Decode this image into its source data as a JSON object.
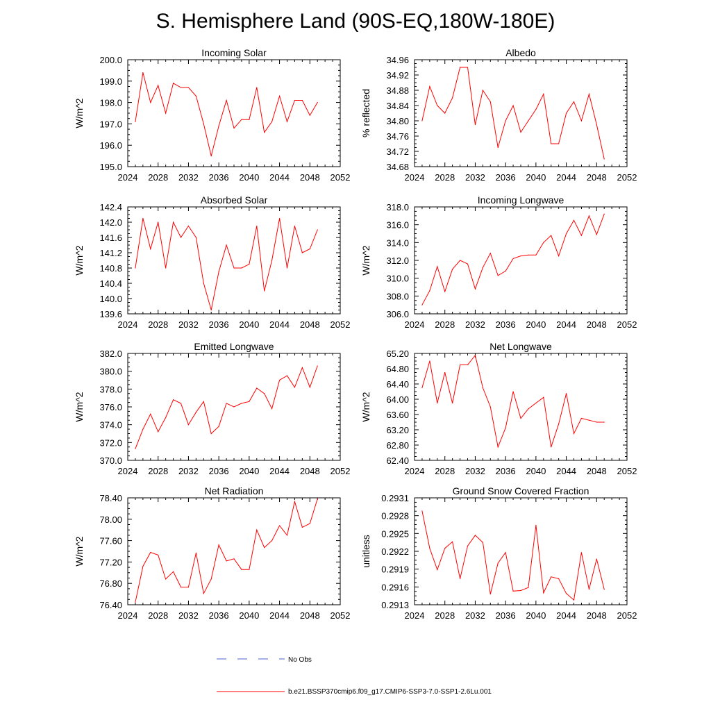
{
  "title": "S. Hemisphere Land (90S-EQ,180W-180E)",
  "colors": {
    "series": "#ff0000",
    "obs": "#4a5fd0",
    "axis": "#000000"
  },
  "legend": {
    "obs_label": "No Obs",
    "series_label": "b.e21.BSSP370cmip6.f09_g17.CMIP6-SSP3-7.0-SSP1-2.6Lu.001"
  },
  "chart_data": [
    {
      "type": "line",
      "title": "Incoming Solar",
      "xlabel": "",
      "ylabel": "W/m^2",
      "xlim": [
        2024,
        2052
      ],
      "x_ticks": [
        "2024",
        "2028",
        "2032",
        "2036",
        "2040",
        "2044",
        "2048",
        "2052"
      ],
      "ylim": [
        195.0,
        200.0
      ],
      "y_ticks": [
        "195.0",
        "196.0",
        "197.0",
        "198.0",
        "199.0",
        "200.0"
      ],
      "series": [
        {
          "x": [
            2025,
            2026,
            2027,
            2028,
            2029,
            2030,
            2031,
            2032,
            2033,
            2034,
            2035,
            2036,
            2037,
            2038,
            2039,
            2040,
            2041,
            2042,
            2043,
            2044,
            2045,
            2046,
            2047,
            2048,
            2049
          ],
          "values": [
            197.1,
            199.4,
            198.0,
            198.8,
            197.5,
            198.9,
            198.7,
            198.7,
            198.3,
            197.0,
            195.5,
            196.9,
            198.1,
            196.8,
            197.2,
            197.2,
            198.7,
            196.6,
            197.1,
            198.3,
            197.1,
            198.1,
            198.1,
            197.4,
            198.0
          ]
        }
      ]
    },
    {
      "type": "line",
      "title": "Albedo",
      "xlabel": "",
      "ylabel": "% reflected",
      "xlim": [
        2024,
        2052
      ],
      "x_ticks": [
        "2024",
        "2028",
        "2032",
        "2036",
        "2040",
        "2044",
        "2048",
        "2052"
      ],
      "ylim": [
        34.68,
        34.96
      ],
      "y_ticks": [
        "34.68",
        "34.72",
        "34.76",
        "34.80",
        "34.84",
        "34.88",
        "34.92",
        "34.96"
      ],
      "series": [
        {
          "x": [
            2025,
            2026,
            2027,
            2028,
            2029,
            2030,
            2031,
            2032,
            2033,
            2034,
            2035,
            2036,
            2037,
            2038,
            2039,
            2040,
            2041,
            2042,
            2043,
            2044,
            2045,
            2046,
            2047,
            2048,
            2049
          ],
          "values": [
            34.8,
            34.89,
            34.84,
            34.82,
            34.86,
            34.94,
            34.94,
            34.79,
            34.88,
            34.85,
            34.73,
            34.8,
            34.84,
            34.77,
            34.8,
            34.83,
            34.87,
            34.74,
            34.74,
            34.82,
            34.85,
            34.8,
            34.87,
            34.79,
            34.7
          ]
        }
      ]
    },
    {
      "type": "line",
      "title": "Absorbed Solar",
      "xlabel": "",
      "ylabel": "W/m^2",
      "xlim": [
        2024,
        2052
      ],
      "x_ticks": [
        "2024",
        "2028",
        "2032",
        "2036",
        "2040",
        "2044",
        "2048",
        "2052"
      ],
      "ylim": [
        139.6,
        142.4
      ],
      "y_ticks": [
        "139.6",
        "140.0",
        "140.4",
        "140.8",
        "141.2",
        "141.6",
        "142.0",
        "142.4"
      ],
      "series": [
        {
          "x": [
            2025,
            2026,
            2027,
            2028,
            2029,
            2030,
            2031,
            2032,
            2033,
            2034,
            2035,
            2036,
            2037,
            2038,
            2039,
            2040,
            2041,
            2042,
            2043,
            2044,
            2045,
            2046,
            2047,
            2048,
            2049
          ],
          "values": [
            140.8,
            142.1,
            141.3,
            142.0,
            140.8,
            142.0,
            141.6,
            141.9,
            141.6,
            140.4,
            139.7,
            140.7,
            141.4,
            140.8,
            140.8,
            140.9,
            141.9,
            140.2,
            141.0,
            142.1,
            140.8,
            141.9,
            141.2,
            141.3,
            141.8
          ]
        }
      ]
    },
    {
      "type": "line",
      "title": "Incoming Longwave",
      "xlabel": "",
      "ylabel": "W/m^2",
      "xlim": [
        2024,
        2052
      ],
      "x_ticks": [
        "2024",
        "2028",
        "2032",
        "2036",
        "2040",
        "2044",
        "2048",
        "2052"
      ],
      "ylim": [
        306.0,
        318.0
      ],
      "y_ticks": [
        "306.0",
        "308.0",
        "310.0",
        "312.0",
        "314.0",
        "316.0",
        "318.0"
      ],
      "series": [
        {
          "x": [
            2025,
            2026,
            2027,
            2028,
            2029,
            2030,
            2031,
            2032,
            2033,
            2034,
            2035,
            2036,
            2037,
            2038,
            2039,
            2040,
            2041,
            2042,
            2043,
            2044,
            2045,
            2046,
            2047,
            2048,
            2049
          ],
          "values": [
            307.0,
            308.6,
            311.3,
            308.5,
            311.0,
            312.0,
            311.6,
            308.8,
            311.2,
            312.8,
            310.3,
            310.8,
            312.2,
            312.5,
            312.6,
            312.6,
            314.0,
            314.8,
            312.5,
            315.0,
            316.5,
            314.8,
            317.0,
            314.9,
            317.2
          ]
        }
      ]
    },
    {
      "type": "line",
      "title": "Emitted Longwave",
      "xlabel": "",
      "ylabel": "W/m^2",
      "xlim": [
        2024,
        2052
      ],
      "x_ticks": [
        "2024",
        "2028",
        "2032",
        "2036",
        "2040",
        "2044",
        "2048",
        "2052"
      ],
      "ylim": [
        370.0,
        382.0
      ],
      "y_ticks": [
        "370.0",
        "372.0",
        "374.0",
        "376.0",
        "378.0",
        "380.0",
        "382.0"
      ],
      "series": [
        {
          "x": [
            2025,
            2026,
            2027,
            2028,
            2029,
            2030,
            2031,
            2032,
            2033,
            2034,
            2035,
            2036,
            2037,
            2038,
            2039,
            2040,
            2041,
            2042,
            2043,
            2044,
            2045,
            2046,
            2047,
            2048,
            2049
          ],
          "values": [
            371.3,
            373.5,
            375.2,
            373.2,
            374.8,
            376.8,
            376.4,
            374.0,
            375.4,
            376.6,
            373.0,
            373.8,
            376.4,
            376.0,
            376.4,
            376.6,
            378.1,
            377.5,
            375.8,
            379.0,
            379.5,
            378.2,
            380.4,
            378.2,
            380.6
          ]
        }
      ]
    },
    {
      "type": "line",
      "title": "Net Longwave",
      "xlabel": "",
      "ylabel": "W/m^2",
      "xlim": [
        2024,
        2052
      ],
      "x_ticks": [
        "2024",
        "2028",
        "2032",
        "2036",
        "2040",
        "2044",
        "2048",
        "2052"
      ],
      "ylim": [
        62.4,
        65.2
      ],
      "y_ticks": [
        "62.40",
        "62.80",
        "63.20",
        "63.60",
        "64.00",
        "64.40",
        "64.80",
        "65.20"
      ],
      "series": [
        {
          "x": [
            2025,
            2026,
            2027,
            2028,
            2029,
            2030,
            2031,
            2032,
            2033,
            2034,
            2035,
            2036,
            2037,
            2038,
            2039,
            2040,
            2041,
            2042,
            2043,
            2044,
            2045,
            2046,
            2047,
            2048,
            2049
          ],
          "values": [
            64.3,
            65.0,
            63.9,
            64.7,
            63.9,
            64.9,
            64.9,
            65.15,
            64.3,
            63.8,
            62.75,
            63.25,
            64.2,
            63.5,
            63.75,
            63.9,
            64.05,
            62.75,
            63.35,
            64.15,
            63.1,
            63.5,
            63.45,
            63.4,
            63.4
          ]
        }
      ]
    },
    {
      "type": "line",
      "title": "Net Radiation",
      "xlabel": "",
      "ylabel": "W/m^2",
      "xlim": [
        2024,
        2052
      ],
      "x_ticks": [
        "2024",
        "2028",
        "2032",
        "2036",
        "2040",
        "2044",
        "2048",
        "2052"
      ],
      "ylim": [
        76.4,
        78.4
      ],
      "y_ticks": [
        "76.40",
        "76.80",
        "77.20",
        "77.60",
        "78.00",
        "78.40"
      ],
      "series": [
        {
          "x": [
            2025,
            2026,
            2027,
            2028,
            2029,
            2030,
            2031,
            2032,
            2033,
            2034,
            2035,
            2036,
            2037,
            2038,
            2039,
            2040,
            2041,
            2042,
            2043,
            2044,
            2045,
            2046,
            2047,
            2048,
            2049
          ],
          "values": [
            76.45,
            77.12,
            77.38,
            77.33,
            76.88,
            77.02,
            76.73,
            76.73,
            77.37,
            76.61,
            76.88,
            77.52,
            77.22,
            77.26,
            77.06,
            77.06,
            77.8,
            77.47,
            77.6,
            77.88,
            77.7,
            78.33,
            77.85,
            77.92,
            78.38
          ]
        }
      ]
    },
    {
      "type": "line",
      "title": "Ground Snow Covered Fraction",
      "xlabel": "",
      "ylabel": "unitless",
      "xlim": [
        2024,
        2052
      ],
      "x_ticks": [
        "2024",
        "2028",
        "2032",
        "2036",
        "2040",
        "2044",
        "2048",
        "2052"
      ],
      "ylim": [
        0.2913,
        0.2931
      ],
      "y_ticks": [
        "0.2913",
        "0.2916",
        "0.2919",
        "0.2922",
        "0.2925",
        "0.2928",
        "0.2931"
      ],
      "series": [
        {
          "x": [
            2025,
            2026,
            2027,
            2028,
            2029,
            2030,
            2031,
            2032,
            2033,
            2034,
            2035,
            2036,
            2037,
            2038,
            2039,
            2040,
            2041,
            2042,
            2043,
            2044,
            2045,
            2046,
            2047,
            2048,
            2049
          ],
          "values": [
            0.29288,
            0.29225,
            0.29189,
            0.29225,
            0.29236,
            0.29174,
            0.29229,
            0.29247,
            0.29235,
            0.29148,
            0.292,
            0.29218,
            0.29153,
            0.29154,
            0.29159,
            0.29264,
            0.2915,
            0.29177,
            0.29174,
            0.29149,
            0.29138,
            0.29218,
            0.29156,
            0.29207,
            0.29156
          ]
        }
      ]
    }
  ]
}
